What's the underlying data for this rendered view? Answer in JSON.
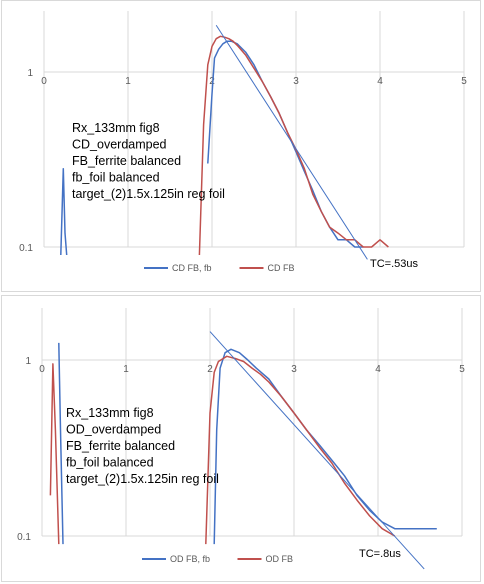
{
  "chart_data": [
    {
      "type": "line",
      "y_scale": "log",
      "xlim": [
        0,
        5
      ],
      "ylim": [
        0.1,
        2
      ],
      "x_ticks": [
        "0",
        "1",
        "2",
        "3",
        "4",
        "5"
      ],
      "y_ticks": [
        "1",
        "0.1"
      ],
      "grid": "vertical and horizontal major gridlines",
      "legend_position": "bottom",
      "annotation_lines": [
        "Rx_133mm fig8",
        "CD_overdamped",
        "FB_ferrite balanced",
        "fb_foil balanced",
        "target_(2)1.5x.125in reg foil"
      ],
      "tc_label": "TC=.53us",
      "fit_line": {
        "x": [
          2.05,
          3.85
        ],
        "y": [
          1.85,
          0.085
        ]
      },
      "series": [
        {
          "name": "CD FB, fb",
          "color": "#4472c4",
          "segments": [
            {
              "x": [
                0.2,
                0.23,
                0.25,
                0.27
              ],
              "y": [
                0.09,
                0.28,
                0.12,
                0.09
              ]
            },
            {
              "x": [
                1.95,
                2.0,
                2.03,
                2.08,
                2.13,
                2.18,
                2.23,
                2.3,
                2.4,
                2.5,
                2.6,
                2.7,
                2.8,
                2.9,
                3.0,
                3.1,
                3.2,
                3.3,
                3.4,
                3.5,
                3.6,
                3.7,
                3.8
              ],
              "y": [
                0.3,
                0.75,
                1.2,
                1.35,
                1.45,
                1.5,
                1.5,
                1.45,
                1.3,
                1.1,
                0.88,
                0.72,
                0.58,
                0.45,
                0.35,
                0.27,
                0.21,
                0.16,
                0.13,
                0.11,
                0.11,
                0.1,
                0.1
              ]
            }
          ]
        },
        {
          "name": "CD FB",
          "color": "#c0504d",
          "segments": [
            {
              "x": [
                1.85,
                1.9,
                1.95,
                2.0,
                2.05,
                2.1,
                2.15,
                2.2,
                2.25,
                2.3,
                2.4,
                2.5,
                2.6,
                2.7,
                2.8,
                2.9,
                3.0,
                3.1,
                3.2,
                3.3,
                3.4,
                3.5,
                3.6,
                3.7,
                3.8,
                3.9,
                4.0,
                4.1
              ],
              "y": [
                0.09,
                0.5,
                1.1,
                1.4,
                1.55,
                1.6,
                1.58,
                1.55,
                1.5,
                1.42,
                1.25,
                1.05,
                0.88,
                0.72,
                0.58,
                0.45,
                0.36,
                0.28,
                0.2,
                0.16,
                0.13,
                0.12,
                0.11,
                0.11,
                0.1,
                0.1,
                0.11,
                0.1
              ]
            }
          ]
        }
      ]
    },
    {
      "type": "line",
      "y_scale": "log",
      "xlim": [
        0,
        5
      ],
      "ylim": [
        0.1,
        2
      ],
      "x_ticks": [
        "0",
        "1",
        "2",
        "3",
        "4",
        "5"
      ],
      "y_ticks": [
        "1",
        "0.1"
      ],
      "grid": "vertical and horizontal major gridlines",
      "legend_position": "bottom",
      "annotation_lines": [
        "Rx_133mm fig8",
        "OD_overdamped",
        "FB_ferrite balanced",
        "fb_foil balanced",
        "target_(2)1.5x.125in reg foil"
      ],
      "tc_label": "TC=.8us",
      "fit_line": {
        "x": [
          2.0,
          4.55
        ],
        "y": [
          1.45,
          0.065
        ]
      },
      "series": [
        {
          "name": "OD FB, fb",
          "color": "#4472c4",
          "segments": [
            {
              "x": [
                0.2,
                0.22,
                0.25
              ],
              "y": [
                1.25,
                0.4,
                0.09
              ]
            },
            {
              "x": [
                2.05,
                2.08,
                2.12,
                2.18,
                2.25,
                2.35,
                2.45,
                2.55,
                2.7,
                2.85,
                3.0,
                3.15,
                3.3,
                3.45,
                3.6,
                3.75,
                3.9,
                4.05,
                4.2,
                4.35,
                4.5,
                4.7
              ],
              "y": [
                0.09,
                0.4,
                0.9,
                1.1,
                1.15,
                1.1,
                1.0,
                0.9,
                0.78,
                0.62,
                0.5,
                0.4,
                0.33,
                0.27,
                0.22,
                0.17,
                0.14,
                0.12,
                0.11,
                0.11,
                0.11,
                0.11
              ]
            }
          ]
        },
        {
          "name": "OD FB",
          "color": "#c0504d",
          "segments": [
            {
              "x": [
                0.1,
                0.13,
                0.16,
                0.2
              ],
              "y": [
                0.17,
                0.95,
                0.4,
                0.09
              ]
            },
            {
              "x": [
                1.95,
                2.0,
                2.05,
                2.1,
                2.2,
                2.3,
                2.4,
                2.5,
                2.6,
                2.7,
                2.85,
                3.0,
                3.15,
                3.3,
                3.45,
                3.6,
                3.75,
                3.9,
                4.05,
                4.2
              ],
              "y": [
                0.09,
                0.5,
                0.85,
                0.98,
                1.05,
                1.02,
                0.98,
                0.9,
                0.83,
                0.75,
                0.62,
                0.5,
                0.4,
                0.32,
                0.26,
                0.2,
                0.16,
                0.13,
                0.11,
                0.1
              ]
            }
          ]
        }
      ]
    }
  ]
}
